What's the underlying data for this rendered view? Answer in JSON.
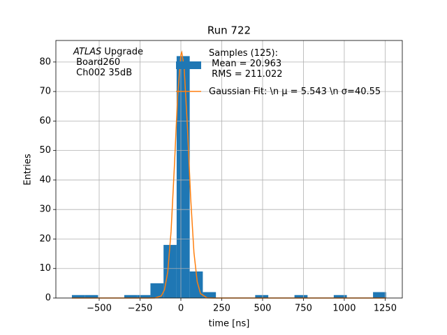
{
  "chart_data": {
    "type": "histogram",
    "title": "Run 722",
    "xlabel": "time [ns]",
    "ylabel": "Entries",
    "bins": [
      -667,
      -586.9,
      -506.75,
      -426.6,
      -346.5,
      -266.4,
      -186.25,
      -106.1,
      -26,
      54.1,
      134.25,
      214.4,
      294.5,
      374.6,
      454.75,
      534.9,
      615,
      695.1,
      775.25,
      855.4,
      935.5,
      1015.6,
      1095.75,
      1175.9,
      1256
    ],
    "counts": [
      1,
      1,
      0,
      0,
      1,
      1,
      5,
      18,
      82,
      9,
      2,
      0,
      0,
      0,
      1,
      0,
      0,
      1,
      0,
      0,
      1,
      0,
      0,
      2
    ],
    "name": "Samples (125):\n Mean = 20.963\n RMS = 211.022",
    "color": "#1f77b4",
    "fit": {
      "type": "line",
      "name": "Gaussian Fit: \\n μ = 5.543 \\n σ=40.55",
      "color": "#ff7f0e",
      "x": [
        -667,
        -200,
        -160,
        -120,
        -100,
        -80,
        -60,
        -40,
        -20,
        0,
        5.5,
        20,
        40,
        60,
        80,
        100,
        120,
        160,
        200,
        1256
      ],
      "values": [
        0,
        0,
        0.02,
        0.69,
        2.8,
        9.0,
        22.6,
        44.4,
        68.3,
        82.5,
        83.3,
        78.1,
        58.0,
        33.8,
        15.4,
        5.5,
        1.5,
        0.06,
        0,
        0
      ]
    },
    "annotation": {
      "experiment": "ATLAS",
      "text": " Upgrade",
      "lines": [
        " Board260",
        " Ch002 35dB"
      ]
    },
    "xlim": [
      -765,
      1355
    ],
    "ylim": [
      0,
      87.3
    ],
    "xticks": [
      {
        "value": -500,
        "label": "−500"
      },
      {
        "value": -250,
        "label": "−250"
      },
      0,
      250,
      500,
      750,
      1000,
      1250
    ],
    "yticks": [
      0,
      10,
      20,
      30,
      40,
      50,
      60,
      70,
      80
    ],
    "grid": true
  }
}
